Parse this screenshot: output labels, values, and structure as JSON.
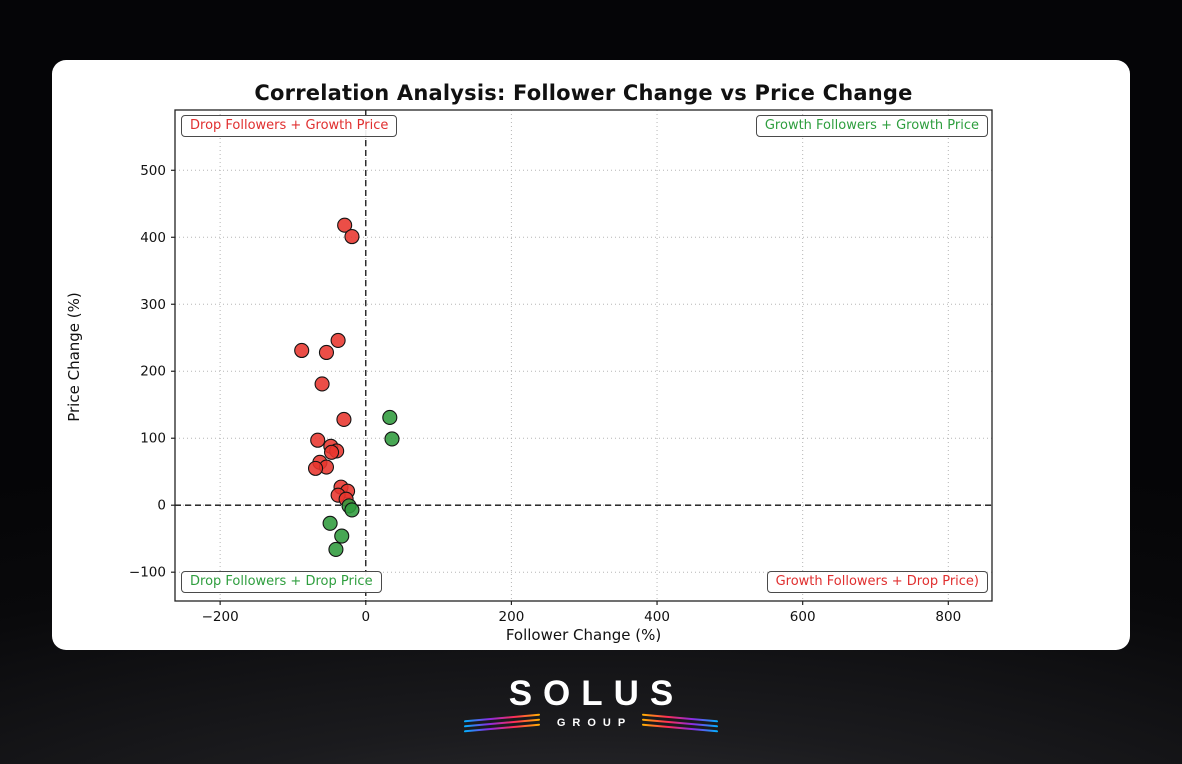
{
  "chart_data": {
    "type": "scatter",
    "title": "Correlation Analysis: Follower Change vs Price Change",
    "xlabel": "Follower Change (%)",
    "ylabel": "Price Change (%)",
    "xlim": [
      -262,
      860
    ],
    "ylim": [
      -143,
      590
    ],
    "grid": true,
    "zero_lines": true,
    "xticks": {
      "values": [
        -200,
        0,
        200,
        400,
        600,
        800
      ],
      "labels": [
        "−200",
        "0",
        "200",
        "400",
        "600",
        "800"
      ]
    },
    "yticks": {
      "values": [
        -100,
        0,
        100,
        200,
        300,
        400,
        500
      ],
      "labels": [
        "−100",
        "0",
        "100",
        "200",
        "300",
        "400",
        "500"
      ]
    },
    "marker": {
      "radius": 7,
      "edge_color": "#141414",
      "opacity": 0.88
    },
    "series": [
      {
        "name": "followers-drop",
        "color": "#e8362e",
        "points": [
          [
            -29,
            418
          ],
          [
            -19,
            401
          ],
          [
            -38,
            246
          ],
          [
            -54,
            228
          ],
          [
            -88,
            231
          ],
          [
            -60,
            181
          ],
          [
            -30,
            128
          ],
          [
            -66,
            97
          ],
          [
            -48,
            88
          ],
          [
            -40,
            81
          ],
          [
            -47,
            79
          ],
          [
            -63,
            64
          ],
          [
            -54,
            57
          ],
          [
            -69,
            55
          ],
          [
            -34,
            27
          ],
          [
            -25,
            21
          ],
          [
            -38,
            15
          ],
          [
            -27,
            9
          ]
        ]
      },
      {
        "name": "followers-growth",
        "color": "#2f9b3c",
        "points": [
          [
            33,
            131
          ],
          [
            36,
            99
          ],
          [
            -23,
            -1
          ],
          [
            -19,
            -7
          ],
          [
            -49,
            -27
          ],
          [
            -33,
            -46
          ],
          [
            -41,
            -66
          ]
        ]
      }
    ],
    "quadrant_labels": [
      {
        "text": "Drop Followers + Growth Price",
        "color": "#e02f2f",
        "position": "top-left"
      },
      {
        "text": "Growth Followers + Growth Price",
        "color": "#2e9e3e",
        "position": "top-right"
      },
      {
        "text": "Drop Followers + Drop Price",
        "color": "#2e9e3e",
        "position": "bottom-left"
      },
      {
        "text": "Growth Followers + Drop Price)",
        "color": "#e02f2f",
        "position": "bottom-right"
      }
    ],
    "colors": {
      "grid": "#b5b5b5",
      "axis_frame": "#222222",
      "zero_line": "#111111",
      "plot_background": "#ffffff"
    }
  },
  "footer": {
    "brand": "SOLUS",
    "sub_brand": "GROUP",
    "stripe_colors": [
      "#00b3ff",
      "#8a2be2",
      "#ff2d55",
      "#ffb300"
    ]
  }
}
